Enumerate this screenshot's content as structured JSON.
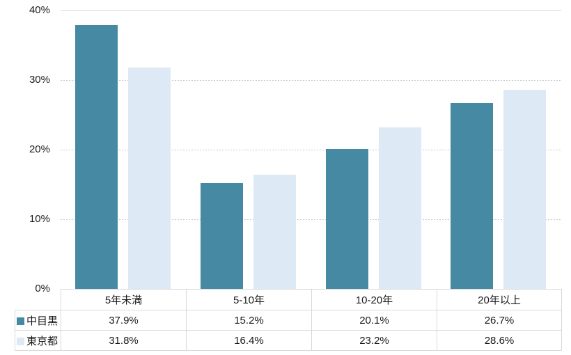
{
  "chart_data": {
    "type": "bar",
    "title": "",
    "categories": [
      "5年未満",
      "5-10年",
      "10-20年",
      "20年以上"
    ],
    "series": [
      {
        "name": "中目黒",
        "values": [
          37.9,
          15.2,
          20.1,
          26.7
        ],
        "color": "#4589a2"
      },
      {
        "name": "東京都",
        "values": [
          31.8,
          16.4,
          23.2,
          28.6
        ],
        "color": "#dde9f5"
      }
    ],
    "value_suffix": "%",
    "ylim": [
      0,
      40
    ],
    "y_ticks": [
      "40%",
      "30%",
      "20%",
      "10%",
      "0%"
    ],
    "grid": "horizontal, top line solid, others dashed",
    "legend_position": "left column of data table"
  },
  "table": {
    "header": [
      "5年未満",
      "5-10年",
      "10-20年",
      "20年以上"
    ],
    "rows": [
      {
        "label": "中目黒",
        "cells": [
          "37.9%",
          "15.2%",
          "20.1%",
          "26.7%"
        ]
      },
      {
        "label": "東京都",
        "cells": [
          "31.8%",
          "16.4%",
          "23.2%",
          "28.6%"
        ]
      }
    ]
  },
  "colors": {
    "series1": "#4589a2",
    "series2": "#dde9f5",
    "gridline_solid": "#d9d9d9",
    "gridline_dashed": "#c6c6c6",
    "table_border": "#d9d9d9",
    "text": "#1a1a1a"
  }
}
